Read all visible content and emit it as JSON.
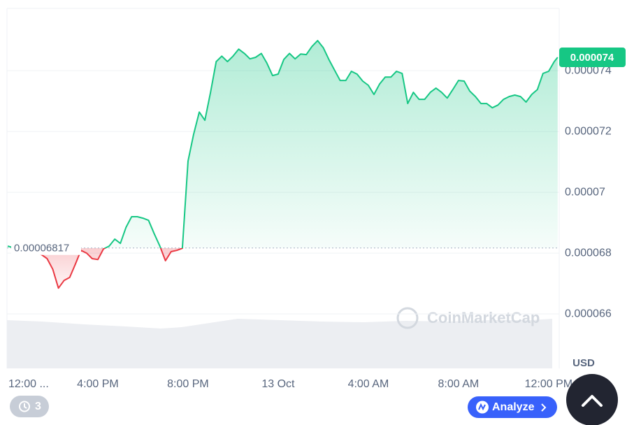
{
  "chart_data": {
    "type": "line",
    "currency": "USD",
    "watermark": "CoinMarketCap",
    "reference": 6.817e-05,
    "price_label": "0.000074",
    "up_color": "#16c784",
    "down_color": "#ea3943",
    "xlim": [
      0,
      24.5
    ],
    "xticks": [
      {
        "value": 0,
        "label": "12:00 ..."
      },
      {
        "value": 4,
        "label": "4:00 PM"
      },
      {
        "value": 8,
        "label": "8:00 PM"
      },
      {
        "value": 12,
        "label": "13 Oct"
      },
      {
        "value": 16,
        "label": "4:00 AM"
      },
      {
        "value": 20,
        "label": "8:00 AM"
      },
      {
        "value": 24,
        "label": "12:00 PM"
      }
    ],
    "ylim": [
      6.421e-05,
      7.605e-05
    ],
    "yticks": [
      6.6e-05,
      6.8e-05,
      7e-05,
      7.2e-05,
      7.4e-05
    ],
    "grid": true,
    "x": [
      0,
      0.25,
      0.5,
      0.75,
      1,
      1.25,
      1.5,
      1.75,
      2,
      2.25,
      2.5,
      2.75,
      3,
      3.25,
      3.5,
      3.75,
      4,
      4.25,
      4.5,
      4.75,
      5,
      5.25,
      5.5,
      5.75,
      6,
      6.25,
      6.5,
      6.75,
      7,
      7.25,
      7.5,
      7.75,
      8,
      8.25,
      8.5,
      8.75,
      9,
      9.25,
      9.5,
      9.75,
      10,
      10.25,
      10.5,
      10.75,
      11,
      11.25,
      11.5,
      11.75,
      12,
      12.25,
      12.5,
      12.75,
      13,
      13.25,
      13.5,
      13.75,
      14,
      14.25,
      14.5,
      14.75,
      15,
      15.25,
      15.5,
      15.75,
      16,
      16.25,
      16.5,
      16.75,
      17,
      17.25,
      17.5,
      17.75,
      18,
      18.25,
      18.5,
      18.75,
      19,
      19.25,
      19.5,
      19.75,
      20,
      20.25,
      20.5,
      20.75,
      21,
      21.25,
      21.5,
      21.75,
      22,
      22.25,
      22.5,
      22.75,
      23,
      23.25,
      23.5,
      23.75,
      24,
      24.25,
      24.4
    ],
    "values": [
      6.823e-05,
      6.818e-05,
      6.816e-05,
      6.811e-05,
      6.809e-05,
      6.802e-05,
      6.795e-05,
      6.782e-05,
      6.747e-05,
      6.685e-05,
      6.71e-05,
      6.72e-05,
      6.763e-05,
      6.809e-05,
      6.8e-05,
      6.782e-05,
      6.779e-05,
      6.814e-05,
      6.823e-05,
      6.846e-05,
      6.832e-05,
      6.885e-05,
      6.92e-05,
      6.92e-05,
      6.915e-05,
      6.908e-05,
      6.864e-05,
      6.823e-05,
      6.775e-05,
      6.805e-05,
      6.809e-05,
      6.816e-05,
      7.103e-05,
      7.191e-05,
      7.264e-05,
      7.237e-05,
      7.329e-05,
      7.43e-05,
      7.448e-05,
      7.43e-05,
      7.448e-05,
      7.471e-05,
      7.457e-05,
      7.439e-05,
      7.444e-05,
      7.457e-05,
      7.425e-05,
      7.384e-05,
      7.389e-05,
      7.437e-05,
      7.457e-05,
      7.439e-05,
      7.455e-05,
      7.453e-05,
      7.48e-05,
      7.499e-05,
      7.476e-05,
      7.437e-05,
      7.402e-05,
      7.368e-05,
      7.368e-05,
      7.398e-05,
      7.389e-05,
      7.366e-05,
      7.352e-05,
      7.322e-05,
      7.356e-05,
      7.379e-05,
      7.379e-05,
      7.398e-05,
      7.391e-05,
      7.292e-05,
      7.329e-05,
      7.306e-05,
      7.306e-05,
      7.329e-05,
      7.343e-05,
      7.329e-05,
      7.31e-05,
      7.338e-05,
      7.368e-05,
      7.366e-05,
      7.333e-05,
      7.315e-05,
      7.292e-05,
      7.292e-05,
      7.278e-05,
      7.287e-05,
      7.306e-05,
      7.315e-05,
      7.32e-05,
      7.315e-05,
      7.297e-05,
      7.322e-05,
      7.338e-05,
      7.391e-05,
      7.398e-05,
      7.43e-05,
      7.444e-05
    ]
  },
  "controls": {
    "history_count": "3",
    "analyze": "Analyze"
  }
}
